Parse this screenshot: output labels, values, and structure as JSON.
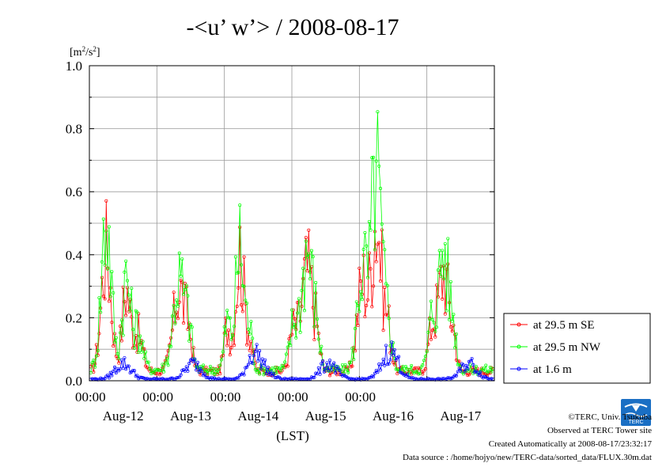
{
  "chart_data": {
    "type": "line",
    "title": "-<u’ w’> / 2008-08-17",
    "ylabel_base": "[m",
    "ylabel_sup1": "2",
    "ylabel_mid": "/s",
    "ylabel_sup2": "2",
    "ylabel_end": "]",
    "xlabel": "(LST)",
    "ylim": [
      0,
      1.0
    ],
    "yticks": [
      "0.0",
      "0.2",
      "0.4",
      "0.6",
      "0.8",
      "1.0"
    ],
    "xlim_hours": [
      0,
      144
    ],
    "hour_ticks": [
      "00:00",
      "00:00",
      "00:00",
      "00:00",
      "00:00"
    ],
    "day_labels": [
      "Aug-12",
      "Aug-13",
      "Aug-14",
      "Aug-15",
      "Aug-16",
      "Aug-17"
    ],
    "grid": true,
    "legend_position": "right",
    "series": [
      {
        "name": "at 29.5 m SE",
        "color": "#ff0000",
        "peaks": [
          [
            6,
            2.5,
            0.38
          ],
          [
            13,
            2.0,
            0.25
          ],
          [
            17,
            2.5,
            0.12
          ],
          [
            32,
            3.0,
            0.26
          ],
          [
            35.5,
            1.5,
            0.08
          ],
          [
            53.5,
            2.2,
            0.37
          ],
          [
            49,
            1.5,
            0.14
          ],
          [
            57,
            1.5,
            0.1
          ],
          [
            77.5,
            3.0,
            0.32
          ],
          [
            72.5,
            2.0,
            0.12
          ],
          [
            81,
            1.5,
            0.06
          ],
          [
            102,
            2.5,
            0.48
          ],
          [
            97,
            2.5,
            0.28
          ],
          [
            106,
            2.0,
            0.14
          ],
          [
            126,
            2.5,
            0.32
          ],
          [
            129.5,
            1.5,
            0.1
          ],
          [
            122,
            2.0,
            0.14
          ]
        ],
        "base": 0.03
      },
      {
        "name": "at 29.5 m NW",
        "color": "#00ff00",
        "peaks": [
          [
            6,
            2.5,
            0.48
          ],
          [
            13,
            2.0,
            0.28
          ],
          [
            17,
            2.5,
            0.13
          ],
          [
            32,
            3.0,
            0.29
          ],
          [
            35.5,
            1.5,
            0.09
          ],
          [
            53.5,
            2.2,
            0.39
          ],
          [
            49,
            1.5,
            0.15
          ],
          [
            57,
            1.5,
            0.11
          ],
          [
            77.5,
            3.0,
            0.38
          ],
          [
            72.5,
            2.0,
            0.13
          ],
          [
            81,
            1.5,
            0.07
          ],
          [
            102,
            2.5,
            0.62
          ],
          [
            97,
            2.5,
            0.32
          ],
          [
            106,
            2.0,
            0.16
          ],
          [
            126,
            2.5,
            0.38
          ],
          [
            129.5,
            1.5,
            0.12
          ],
          [
            122,
            2.0,
            0.16
          ]
        ],
        "base": 0.035
      },
      {
        "name": "at 1.6 m",
        "color": "#0000ff",
        "peaks": [
          [
            12,
            4.0,
            0.05
          ],
          [
            37,
            4.0,
            0.05
          ],
          [
            58,
            3.0,
            0.06
          ],
          [
            61,
            4.0,
            0.04
          ],
          [
            85,
            4.0,
            0.05
          ],
          [
            107,
            4.0,
            0.09
          ],
          [
            135,
            4.0,
            0.05
          ]
        ],
        "base": 0.005
      }
    ]
  },
  "footer": {
    "copyright": "©TERC, Univ. Tsukuba",
    "observed": "Observed at TERC Tower site",
    "created": "Created Automatically at 2008-08-17/23:32:17",
    "source": "Data source : /home/hojyo/new/TERC-data/sorted_data/FLUX.30m.dat"
  },
  "logo": {
    "text": "TERC",
    "color": "#1a6fc4"
  }
}
